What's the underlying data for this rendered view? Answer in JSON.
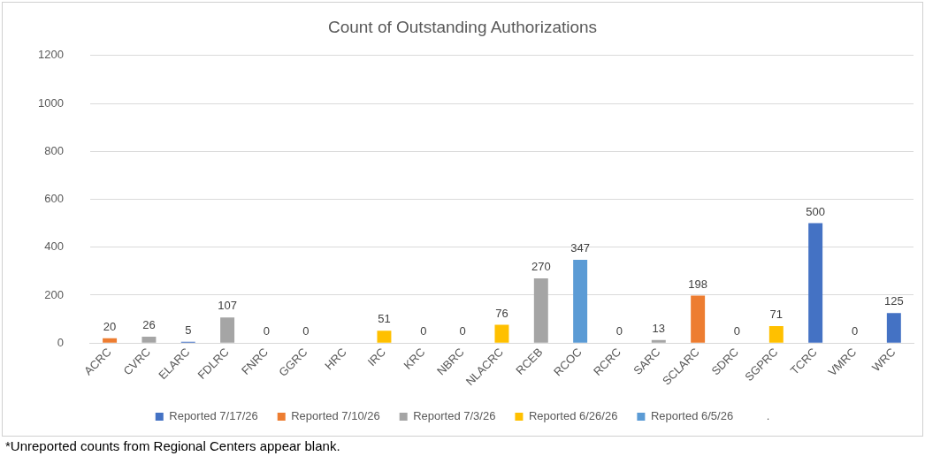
{
  "chart_data": {
    "type": "bar",
    "title": "Count of Outstanding Authorizations",
    "categories": [
      "ACRC",
      "CVRC",
      "ELARC",
      "FDLRC",
      "FNRC",
      "GGRC",
      "HRC",
      "IRC",
      "KRC",
      "NBRC",
      "NLACRC",
      "RCEB",
      "RCOC",
      "RCRC",
      "SARC",
      "SCLARC",
      "SDRC",
      "SGPRC",
      "TCRC",
      "VMRC",
      "WRC"
    ],
    "series": [
      {
        "name": "Reported 7/17/26",
        "color": "#4472c4",
        "values": [
          null,
          null,
          5,
          null,
          null,
          null,
          null,
          null,
          null,
          null,
          null,
          null,
          null,
          null,
          null,
          null,
          null,
          null,
          500,
          null,
          125
        ]
      },
      {
        "name": "Reported 7/10/26",
        "color": "#ed7d31",
        "values": [
          20,
          null,
          null,
          null,
          null,
          null,
          null,
          null,
          null,
          null,
          null,
          null,
          null,
          null,
          null,
          198,
          null,
          null,
          null,
          null,
          null
        ]
      },
      {
        "name": "Reported 7/3/26",
        "color": "#a5a5a5",
        "values": [
          null,
          26,
          null,
          107,
          null,
          null,
          null,
          null,
          null,
          null,
          null,
          270,
          null,
          null,
          13,
          null,
          null,
          null,
          null,
          null,
          null
        ]
      },
      {
        "name": "Reported 6/26/26",
        "color": "#ffc000",
        "values": [
          null,
          null,
          null,
          null,
          null,
          null,
          null,
          51,
          null,
          null,
          76,
          null,
          null,
          null,
          null,
          null,
          null,
          71,
          null,
          null,
          null
        ]
      },
      {
        "name": "Reported 6/5/26",
        "color": "#5b9bd5",
        "values": [
          null,
          null,
          null,
          null,
          null,
          null,
          null,
          null,
          null,
          null,
          null,
          null,
          347,
          null,
          null,
          null,
          null,
          null,
          null,
          null,
          null
        ]
      },
      {
        "name": ".",
        "values": [
          null,
          null,
          null,
          null,
          0,
          0,
          null,
          null,
          0,
          0,
          null,
          null,
          null,
          0,
          null,
          null,
          0,
          null,
          null,
          0,
          null
        ]
      }
    ],
    "ylim": [
      0,
      1200
    ],
    "yticks": [
      0,
      200,
      400,
      600,
      800,
      1000,
      1200
    ],
    "grid": "y",
    "legend": "bottom",
    "data_labels": true,
    "annotations": [
      "*Unreported counts from Regional Centers appear blank."
    ]
  }
}
